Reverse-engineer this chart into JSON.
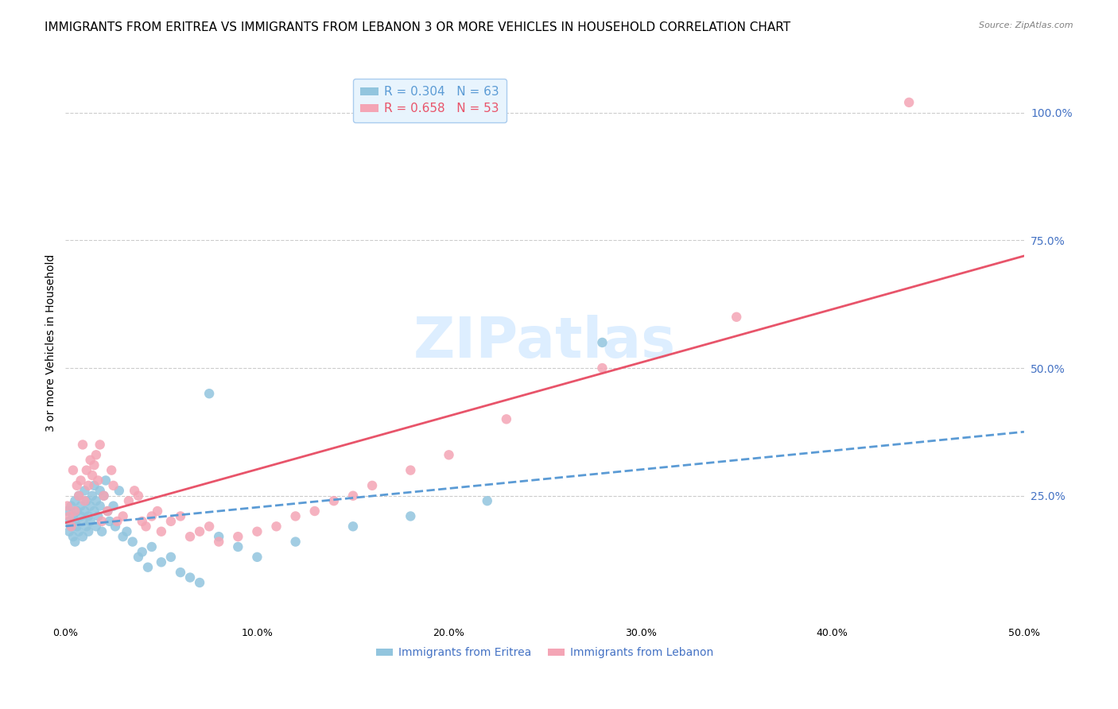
{
  "title": "IMMIGRANTS FROM ERITREA VS IMMIGRANTS FROM LEBANON 3 OR MORE VEHICLES IN HOUSEHOLD CORRELATION CHART",
  "source": "Source: ZipAtlas.com",
  "xlabel": "",
  "ylabel": "3 or more Vehicles in Household",
  "series": [
    {
      "label": "Immigrants from Eritrea",
      "R": 0.304,
      "N": 63,
      "color": "#92C5DE",
      "line_color": "#5B9BD5",
      "line_style": "--",
      "x": [
        0.001,
        0.002,
        0.002,
        0.003,
        0.003,
        0.004,
        0.004,
        0.005,
        0.005,
        0.005,
        0.006,
        0.006,
        0.007,
        0.007,
        0.008,
        0.008,
        0.009,
        0.009,
        0.01,
        0.01,
        0.011,
        0.011,
        0.012,
        0.012,
        0.013,
        0.013,
        0.014,
        0.015,
        0.015,
        0.016,
        0.016,
        0.017,
        0.018,
        0.018,
        0.019,
        0.02,
        0.021,
        0.022,
        0.023,
        0.025,
        0.026,
        0.028,
        0.03,
        0.032,
        0.035,
        0.038,
        0.04,
        0.043,
        0.045,
        0.05,
        0.055,
        0.06,
        0.065,
        0.07,
        0.075,
        0.08,
        0.09,
        0.1,
        0.12,
        0.15,
        0.18,
        0.22,
        0.28
      ],
      "y": [
        0.22,
        0.2,
        0.18,
        0.23,
        0.19,
        0.21,
        0.17,
        0.24,
        0.2,
        0.16,
        0.22,
        0.19,
        0.25,
        0.18,
        0.21,
        0.23,
        0.2,
        0.17,
        0.26,
        0.22,
        0.19,
        0.24,
        0.21,
        0.18,
        0.23,
        0.2,
        0.25,
        0.27,
        0.22,
        0.19,
        0.24,
        0.21,
        0.26,
        0.23,
        0.18,
        0.25,
        0.28,
        0.22,
        0.2,
        0.23,
        0.19,
        0.26,
        0.17,
        0.18,
        0.16,
        0.13,
        0.14,
        0.11,
        0.15,
        0.12,
        0.13,
        0.1,
        0.09,
        0.08,
        0.45,
        0.17,
        0.15,
        0.13,
        0.16,
        0.19,
        0.21,
        0.24,
        0.55
      ]
    },
    {
      "label": "Immigrants from Lebanon",
      "R": 0.658,
      "N": 53,
      "color": "#F4A5B5",
      "line_color": "#E8546A",
      "line_style": "-",
      "x": [
        0.001,
        0.002,
        0.003,
        0.004,
        0.005,
        0.006,
        0.007,
        0.008,
        0.009,
        0.01,
        0.011,
        0.012,
        0.013,
        0.014,
        0.015,
        0.016,
        0.017,
        0.018,
        0.019,
        0.02,
        0.022,
        0.024,
        0.025,
        0.027,
        0.03,
        0.033,
        0.036,
        0.038,
        0.04,
        0.042,
        0.045,
        0.048,
        0.05,
        0.055,
        0.06,
        0.065,
        0.07,
        0.075,
        0.08,
        0.09,
        0.1,
        0.11,
        0.12,
        0.13,
        0.14,
        0.15,
        0.16,
        0.18,
        0.2,
        0.23,
        0.28,
        0.35,
        0.44
      ],
      "y": [
        0.23,
        0.21,
        0.19,
        0.3,
        0.22,
        0.27,
        0.25,
        0.28,
        0.35,
        0.24,
        0.3,
        0.27,
        0.32,
        0.29,
        0.31,
        0.33,
        0.28,
        0.35,
        0.2,
        0.25,
        0.22,
        0.3,
        0.27,
        0.2,
        0.21,
        0.24,
        0.26,
        0.25,
        0.2,
        0.19,
        0.21,
        0.22,
        0.18,
        0.2,
        0.21,
        0.17,
        0.18,
        0.19,
        0.16,
        0.17,
        0.18,
        0.19,
        0.21,
        0.22,
        0.24,
        0.25,
        0.27,
        0.3,
        0.33,
        0.4,
        0.5,
        0.6,
        1.02
      ]
    }
  ],
  "xlim": [
    0.0,
    0.5
  ],
  "ylim": [
    0.0,
    1.1
  ],
  "x_ticks": [
    0.0,
    0.1,
    0.2,
    0.3,
    0.4,
    0.5
  ],
  "x_tick_labels": [
    "0.0%",
    "10.0%",
    "20.0%",
    "30.0%",
    "40.0%",
    "50.0%"
  ],
  "y_ticks_right": [
    0.25,
    0.5,
    0.75,
    1.0
  ],
  "y_tick_labels_right": [
    "25.0%",
    "50.0%",
    "75.0%",
    "100.0%"
  ],
  "grid_color": "#CCCCCC",
  "background_color": "#FFFFFF",
  "watermark": "ZIPatlas",
  "watermark_color": "#DDEEFF",
  "title_fontsize": 11,
  "axis_label_fontsize": 10,
  "tick_fontsize": 9,
  "right_tick_color": "#4472C4",
  "legend_box_color": "#E8F4FD"
}
